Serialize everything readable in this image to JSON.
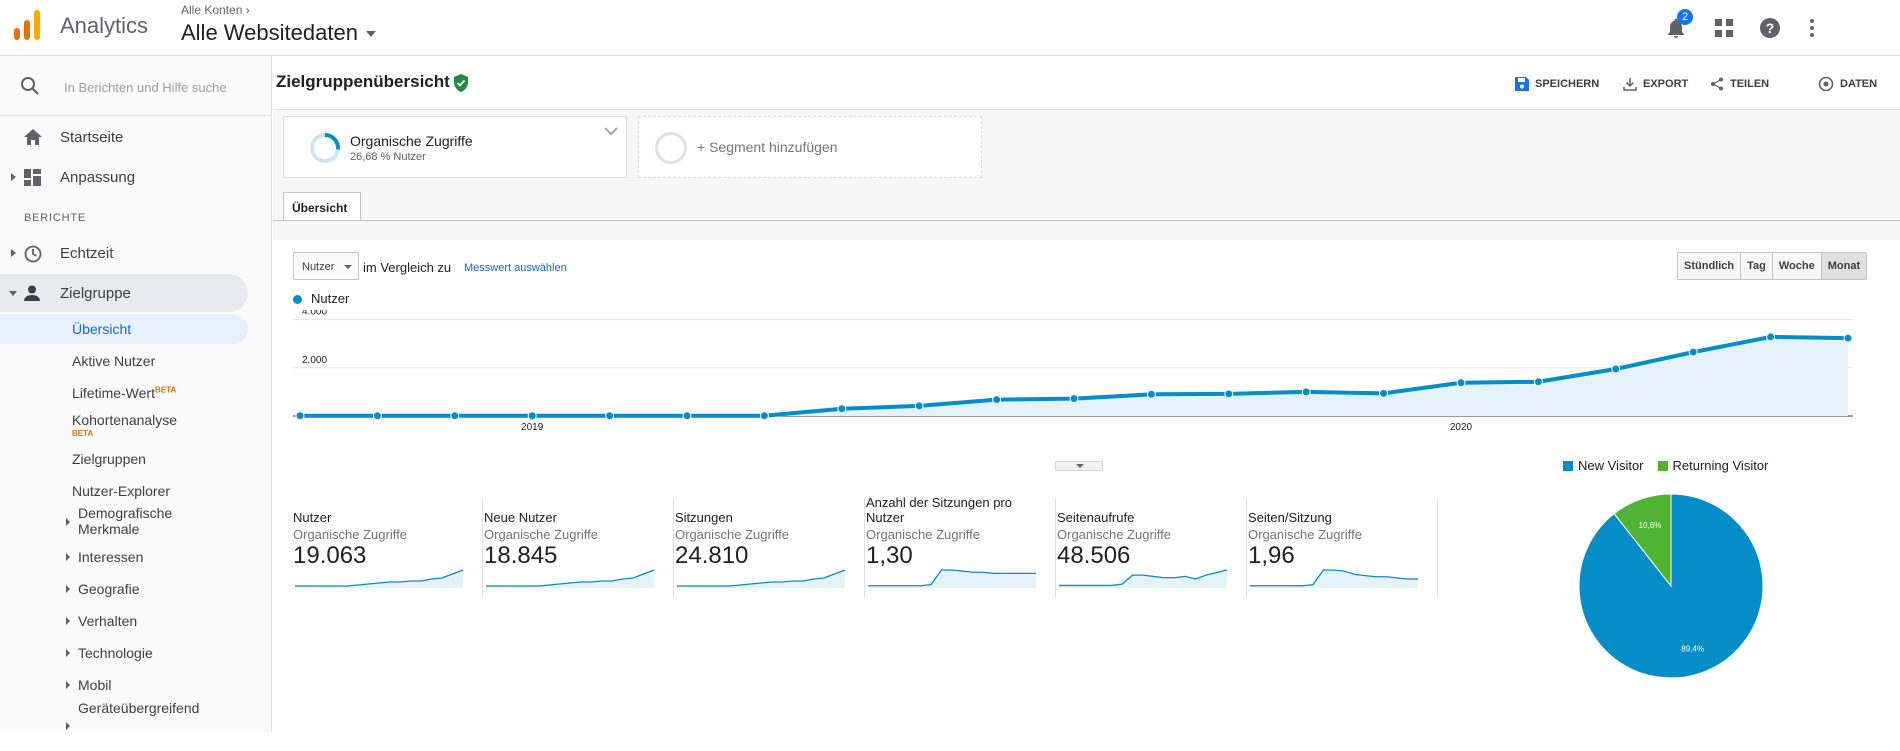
{
  "app": {
    "name": "Analytics",
    "account_crumb": "Alle Konten",
    "account_view": "Alle Websitedaten",
    "notification_count": "2"
  },
  "sidebar": {
    "search_placeholder": "In Berichten und Hilfe suche",
    "home": "Startseite",
    "customization": "Anpassung",
    "reports_label": "BERICHTE",
    "realtime": "Echtzeit",
    "audience": "Zielgruppe",
    "audience_items": {
      "overview": "Übersicht",
      "active_users": "Aktive Nutzer",
      "lifetime_value": "Lifetime-Wert",
      "cohort": "Kohortenanalyse",
      "audiences": "Zielgruppen",
      "user_explorer": "Nutzer-Explorer",
      "demographics": "Demografische Merkmale",
      "interests": "Interessen",
      "geo": "Geografie",
      "behavior": "Verhalten",
      "technology": "Technologie",
      "mobile": "Mobil",
      "cross_device": "Geräteübergreifend"
    },
    "beta_label": "BETA"
  },
  "report": {
    "title": "Zielgruppenübersicht",
    "actions": {
      "save": "SPEICHERN",
      "export": "EXPORT",
      "share": "TEILEN",
      "data": "DATEN"
    }
  },
  "segments": {
    "active": {
      "name": "Organische Zugriffe",
      "share": "26,68 % Nutzer",
      "fraction": 0.2668
    },
    "add_label": "+ Segment hinzufügen"
  },
  "tabs": {
    "overview": "Übersicht"
  },
  "controls": {
    "metric": "Nutzer",
    "compare_label": "im Vergleich zu",
    "select_metric": "Messwert auswählen",
    "granularity": [
      "Stündlich",
      "Tag",
      "Woche",
      "Monat"
    ],
    "selected_granularity": "Monat"
  },
  "colors": {
    "primary": "#058dc7",
    "secondary": "#50b432"
  },
  "chart_data": [
    {
      "type": "area",
      "series": [
        {
          "name": "Nutzer",
          "values": [
            10,
            10,
            10,
            10,
            10,
            10,
            10,
            300,
            420,
            680,
            720,
            900,
            920,
            1000,
            940,
            1380,
            1420,
            1950,
            2650,
            3280,
            3230
          ]
        }
      ],
      "y_ticks": [
        "4.000",
        "2.000"
      ],
      "ylim": [
        0,
        4000
      ],
      "x_labels": [
        "2019",
        "2020"
      ],
      "x_label_index": [
        3,
        15
      ]
    },
    {
      "type": "pie",
      "slices": [
        {
          "name": "New Visitor",
          "value": 89.4,
          "label": "89,4%",
          "color": "#058dc7"
        },
        {
          "name": "Returning Visitor",
          "value": 10.6,
          "label": "10,6%",
          "color": "#50b432"
        }
      ]
    }
  ],
  "scorecards": [
    {
      "name": "Nutzer",
      "segment": "Organische Zugriffe",
      "value": "19.063",
      "trend": [
        2,
        2,
        2,
        2,
        2,
        2,
        3,
        4,
        5,
        6,
        6,
        7,
        7,
        9,
        10,
        14,
        18
      ]
    },
    {
      "name": "Neue Nutzer",
      "segment": "Organische Zugriffe",
      "value": "18.845",
      "trend": [
        2,
        2,
        2,
        2,
        2,
        2,
        3,
        4,
        5,
        6,
        6,
        7,
        7,
        9,
        10,
        14,
        18
      ]
    },
    {
      "name": "Sitzungen",
      "segment": "Organische Zugriffe",
      "value": "24.810",
      "trend": [
        2,
        2,
        2,
        2,
        2,
        2,
        3,
        4,
        5,
        6,
        6,
        7,
        7,
        9,
        10,
        14,
        18
      ]
    },
    {
      "name": "Anzahl der Sitzungen pro Nutzer",
      "segment": "Organische Zugriffe",
      "value": "1,30",
      "trend": [
        2,
        2,
        2,
        2,
        2,
        2,
        3,
        16,
        16,
        15,
        14,
        14,
        13,
        13,
        13,
        13,
        13
      ]
    },
    {
      "name": "Seitenaufrufe",
      "segment": "Organische Zugriffe",
      "value": "48.506",
      "trend": [
        2,
        2,
        2,
        2,
        2,
        2,
        3,
        10,
        10,
        9,
        8,
        8,
        9,
        7,
        10,
        12,
        14
      ]
    },
    {
      "name": "Seiten/Sitzung",
      "segment": "Organische Zugriffe",
      "value": "1,96",
      "trend": [
        2,
        2,
        2,
        2,
        2,
        2,
        3,
        16,
        16,
        15,
        12,
        11,
        10,
        10,
        9,
        8,
        8
      ]
    }
  ]
}
